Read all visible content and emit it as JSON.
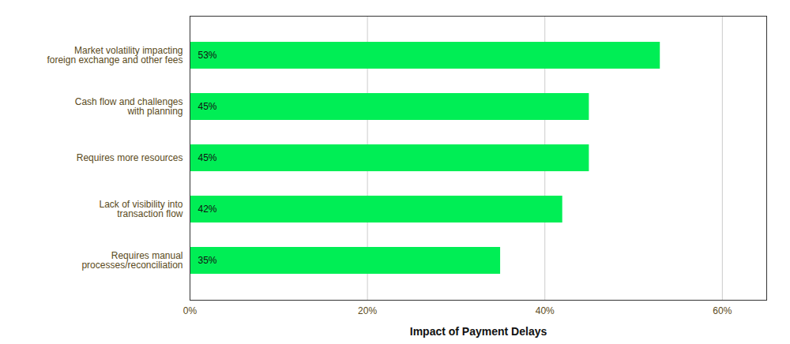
{
  "chart_data": {
    "type": "bar",
    "orientation": "horizontal",
    "xlabel": "Impact of Payment Delays",
    "categories": [
      "Requires manual\nprocesses/reconciliation",
      "Lack of visibility into\ntransaction flow",
      "Requires more resources",
      "Cash flow and challenges\nwith planning",
      "Market volatility impacting\nforeign exchange and other fees"
    ],
    "values": [
      35,
      42,
      45,
      45,
      53
    ],
    "value_labels": [
      "35%",
      "42%",
      "45%",
      "45%",
      "53%"
    ],
    "data_labels": true,
    "color": "#00ee55",
    "xlim": [
      0,
      65
    ],
    "xticks": [
      {
        "value": 0,
        "label": "0%"
      },
      {
        "value": 20,
        "label": "20%"
      },
      {
        "value": 40,
        "label": "40%"
      },
      {
        "value": 60,
        "label": "60%"
      }
    ],
    "grid": true
  }
}
